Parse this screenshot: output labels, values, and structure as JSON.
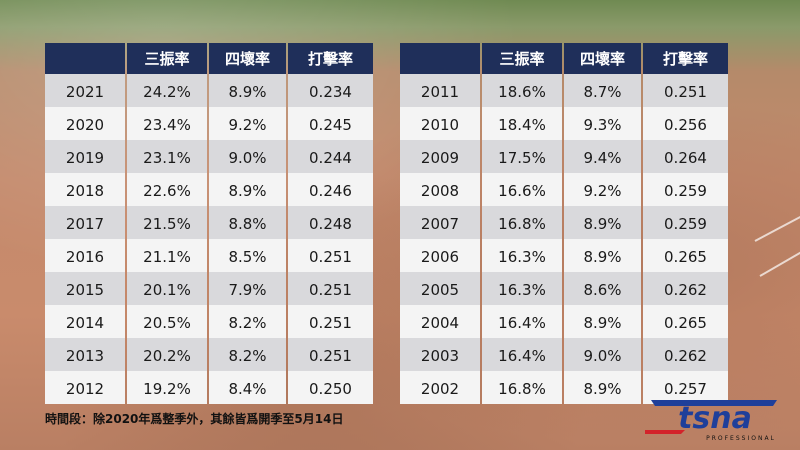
{
  "headers": [
    "",
    "三振率",
    "四壞率",
    "打擊率"
  ],
  "left_table": [
    [
      "2021",
      "24.2%",
      "8.9%",
      "0.234"
    ],
    [
      "2020",
      "23.4%",
      "9.2%",
      "0.245"
    ],
    [
      "2019",
      "23.1%",
      "9.0%",
      "0.244"
    ],
    [
      "2018",
      "22.6%",
      "8.9%",
      "0.246"
    ],
    [
      "2017",
      "21.5%",
      "8.8%",
      "0.248"
    ],
    [
      "2016",
      "21.1%",
      "8.5%",
      "0.251"
    ],
    [
      "2015",
      "20.1%",
      "7.9%",
      "0.251"
    ],
    [
      "2014",
      "20.5%",
      "8.2%",
      "0.251"
    ],
    [
      "2013",
      "20.2%",
      "8.2%",
      "0.251"
    ],
    [
      "2012",
      "19.2%",
      "8.4%",
      "0.250"
    ]
  ],
  "right_table": [
    [
      "2011",
      "18.6%",
      "8.7%",
      "0.251"
    ],
    [
      "2010",
      "18.4%",
      "9.3%",
      "0.256"
    ],
    [
      "2009",
      "17.5%",
      "9.4%",
      "0.264"
    ],
    [
      "2008",
      "16.6%",
      "9.2%",
      "0.259"
    ],
    [
      "2007",
      "16.8%",
      "8.9%",
      "0.259"
    ],
    [
      "2006",
      "16.3%",
      "8.9%",
      "0.265"
    ],
    [
      "2005",
      "16.3%",
      "8.6%",
      "0.262"
    ],
    [
      "2004",
      "16.4%",
      "8.9%",
      "0.265"
    ],
    [
      "2003",
      "16.4%",
      "9.0%",
      "0.262"
    ],
    [
      "2002",
      "16.8%",
      "8.9%",
      "0.257"
    ]
  ],
  "footnote": "時間段：除2020年爲整季外，其餘皆爲開季至5月14日",
  "logo": {
    "text": "tsna",
    "subtext": "PROFESSIONAL",
    "primary_color": "#1f3f9a",
    "accent_color": "#d3232a"
  },
  "colors": {
    "header_bg": "#1f2f5a",
    "row_dark": "#d9d9dc",
    "row_light": "#f4f4f4"
  }
}
